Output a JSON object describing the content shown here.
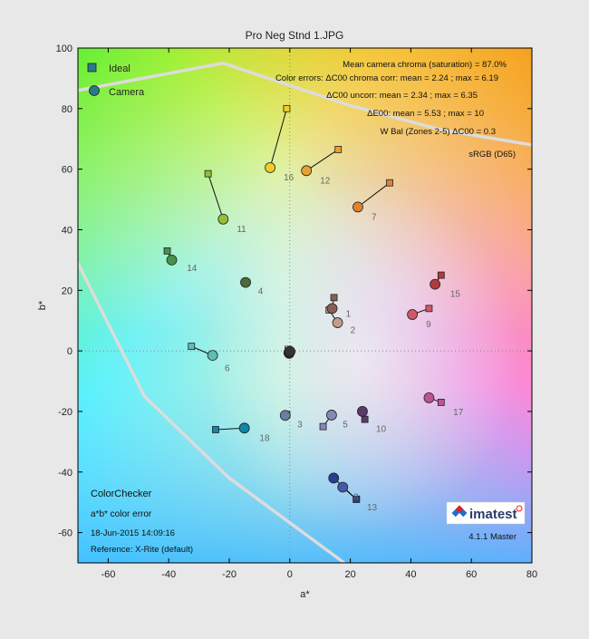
{
  "title": "Pro Neg Stnd 1.JPG",
  "chart_data": {
    "type": "scatter",
    "xlabel": "a*",
    "ylabel": "b*",
    "xlim": [
      -70,
      80
    ],
    "ylim": [
      -70,
      100
    ],
    "xticks": [
      -60,
      -40,
      -20,
      0,
      20,
      40,
      60,
      80
    ],
    "yticks": [
      -60,
      -40,
      -20,
      0,
      20,
      40,
      60,
      80,
      100
    ],
    "grid": "dotted axes at zero",
    "legend": [
      {
        "name": "Ideal",
        "marker": "square"
      },
      {
        "name": "Camera",
        "marker": "circle"
      }
    ],
    "annotations": [
      "Mean camera chroma (saturation) = 87.0%",
      "Color errors:  ΔC00 chroma corr: mean = 2.24 ; max = 6.19",
      "ΔC00 uncorr: mean = 2.34 ; max = 6.35",
      "ΔE00: mean = 5.53 ; max = 10",
      "W Bal (Zones 2-5)   ΔC00 = 0.3",
      "sRGB (D65)"
    ],
    "info_lines": [
      "ColorChecker",
      "a*b* color error",
      "18-Jun-2015 14:09:16",
      "Reference: X-Rite (default)"
    ],
    "logo_text": "imatest",
    "version": "4.1.1 Master",
    "gamut_srgb": [
      [
        -70,
        86
      ],
      [
        -22,
        95
      ],
      [
        20,
        81
      ],
      [
        50,
        73
      ],
      [
        80,
        68
      ]
    ],
    "gamut_lower": [
      [
        -70,
        29
      ],
      [
        -48,
        -15
      ],
      [
        -20,
        -42
      ],
      [
        18,
        -70
      ]
    ],
    "patches": [
      {
        "id": "1",
        "ideal": [
          14.6,
          17.6
        ],
        "camera": [
          14.0,
          14.0
        ],
        "color": "#8a5f53"
      },
      {
        "id": "2",
        "ideal": [
          13.0,
          13.5
        ],
        "camera": [
          15.8,
          9.3
        ],
        "color": "#c39c8c"
      },
      {
        "id": "3",
        "ideal": [
          -1.0,
          -21.0
        ],
        "camera": [
          -1.5,
          -21.3
        ],
        "color": "#6a7ea4"
      },
      {
        "id": "4",
        "ideal": [
          -14.5,
          22.5
        ],
        "camera": [
          -14.6,
          22.6
        ],
        "color": "#4a6d3b"
      },
      {
        "id": "5",
        "ideal": [
          11.0,
          -25.0
        ],
        "camera": [
          13.8,
          -21.2
        ],
        "color": "#8986b8"
      },
      {
        "id": "6",
        "ideal": [
          -32.5,
          1.5
        ],
        "camera": [
          -25.5,
          -1.5
        ],
        "color": "#5dbdb1"
      },
      {
        "id": "7",
        "ideal": [
          33.0,
          55.5
        ],
        "camera": [
          22.5,
          47.5
        ],
        "color": "#e08230"
      },
      {
        "id": "8",
        "ideal": [
          22.0,
          -49.0
        ],
        "camera": [
          17.5,
          -45.0
        ],
        "color": "#4758a8"
      },
      {
        "id": "9",
        "ideal": [
          46.0,
          14.0
        ],
        "camera": [
          40.5,
          12.0
        ],
        "color": "#cf5866"
      },
      {
        "id": "10",
        "ideal": [
          24.8,
          -22.6
        ],
        "camera": [
          24.0,
          -20.0
        ],
        "color": "#5b3a6c"
      },
      {
        "id": "11",
        "ideal": [
          -27.0,
          58.5
        ],
        "camera": [
          -22.0,
          43.5
        ],
        "color": "#95bd3b"
      },
      {
        "id": "12",
        "ideal": [
          16.0,
          66.5
        ],
        "camera": [
          5.5,
          59.5
        ],
        "color": "#e4a232"
      },
      {
        "id": "13",
        "ideal": [
          22.0,
          -49.0
        ],
        "camera": [
          14.5,
          -42.0
        ],
        "color": "#273e93"
      },
      {
        "id": "14",
        "ideal": [
          -40.5,
          33.0
        ],
        "camera": [
          -39.0,
          30.0
        ],
        "color": "#46934c"
      },
      {
        "id": "15",
        "ideal": [
          50.0,
          25.0
        ],
        "camera": [
          48.0,
          22.0
        ],
        "color": "#b13a3c"
      },
      {
        "id": "16",
        "ideal": [
          -1.0,
          80.0
        ],
        "camera": [
          -6.5,
          60.5
        ],
        "color": "#eed022"
      },
      {
        "id": "17",
        "ideal": [
          50.0,
          -17.0
        ],
        "camera": [
          46.0,
          -15.5
        ],
        "color": "#bb5595"
      },
      {
        "id": "18",
        "ideal": [
          -24.5,
          -26.0
        ],
        "camera": [
          -15.0,
          -25.5
        ],
        "color": "#1085a6"
      },
      {
        "id": "19",
        "ideal": [
          -0.5,
          0.5
        ],
        "camera": [
          -0.2,
          -0.8
        ],
        "color": "#f3f3f3"
      },
      {
        "id": "20",
        "ideal": [
          -0.4,
          0.0
        ],
        "camera": [
          -0.3,
          -0.6
        ],
        "color": "#c8c8c8"
      },
      {
        "id": "21",
        "ideal": [
          -0.3,
          -0.2
        ],
        "camera": [
          -0.2,
          -0.5
        ],
        "color": "#a0a0a0"
      },
      {
        "id": "22",
        "ideal": [
          -0.2,
          -0.3
        ],
        "camera": [
          -0.1,
          -0.4
        ],
        "color": "#7a7a7a"
      },
      {
        "id": "23",
        "ideal": [
          -0.1,
          -0.4
        ],
        "camera": [
          0.0,
          -0.3
        ],
        "color": "#555555"
      },
      {
        "id": "24",
        "ideal": [
          0.0,
          -0.5
        ],
        "camera": [
          0.1,
          -0.2
        ],
        "color": "#343434"
      }
    ],
    "labels": [
      {
        "text": "1",
        "at": [
          18.5,
          12.5
        ]
      },
      {
        "text": "2",
        "at": [
          20.0,
          7.0
        ]
      },
      {
        "text": "3",
        "at": [
          2.5,
          -24.0
        ]
      },
      {
        "text": "4",
        "at": [
          -10.5,
          20.0
        ]
      },
      {
        "text": "5",
        "at": [
          17.5,
          -24.0
        ]
      },
      {
        "text": "6",
        "at": [
          -21.5,
          -5.5
        ]
      },
      {
        "text": "7",
        "at": [
          27.0,
          44.5
        ]
      },
      {
        "text": "8",
        "at": [
          21.0,
          -48.0
        ]
      },
      {
        "text": "9",
        "at": [
          45.0,
          9.0
        ]
      },
      {
        "text": "10",
        "at": [
          28.5,
          -25.5
        ]
      },
      {
        "text": "11",
        "at": [
          -17.5,
          40.5
        ]
      },
      {
        "text": "12",
        "at": [
          10.0,
          56.5
        ]
      },
      {
        "text": "13",
        "at": [
          25.5,
          -51.5
        ]
      },
      {
        "text": "14",
        "at": [
          -34.0,
          27.5
        ]
      },
      {
        "text": "15",
        "at": [
          53.0,
          19.0
        ]
      },
      {
        "text": "16",
        "at": [
          -2.0,
          57.5
        ]
      },
      {
        "text": "17",
        "at": [
          54.0,
          -20.0
        ]
      },
      {
        "text": "18",
        "at": [
          -10.0,
          -28.5
        ]
      }
    ]
  },
  "colors": {
    "plot_frame": "#000000",
    "figure_background": "#e8e8e8",
    "gamut_line": "#dcdcdc"
  }
}
